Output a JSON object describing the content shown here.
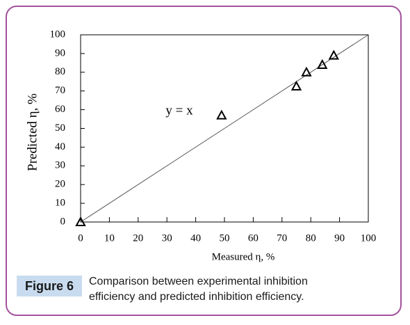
{
  "chart_data": {
    "type": "scatter",
    "x": [
      0,
      49,
      75,
      78.5,
      84,
      88
    ],
    "values": [
      0,
      57,
      72.5,
      80,
      84,
      89
    ],
    "color": "#000000",
    "xlim": [
      0,
      100
    ],
    "ylim": [
      0,
      100
    ],
    "xticks": [
      0,
      10,
      20,
      30,
      40,
      50,
      60,
      70,
      80,
      90,
      100
    ],
    "yticks": [
      0,
      10,
      20,
      30,
      40,
      50,
      60,
      70,
      80,
      90,
      100
    ],
    "xlabel": "Measured η, %",
    "ylabel": "Predicted η, %",
    "annotation": "y = x"
  },
  "caption": {
    "label": "Figure 6",
    "text": "Comparison between experimental inhibition efficiency and predicted inhibition efficiency."
  }
}
